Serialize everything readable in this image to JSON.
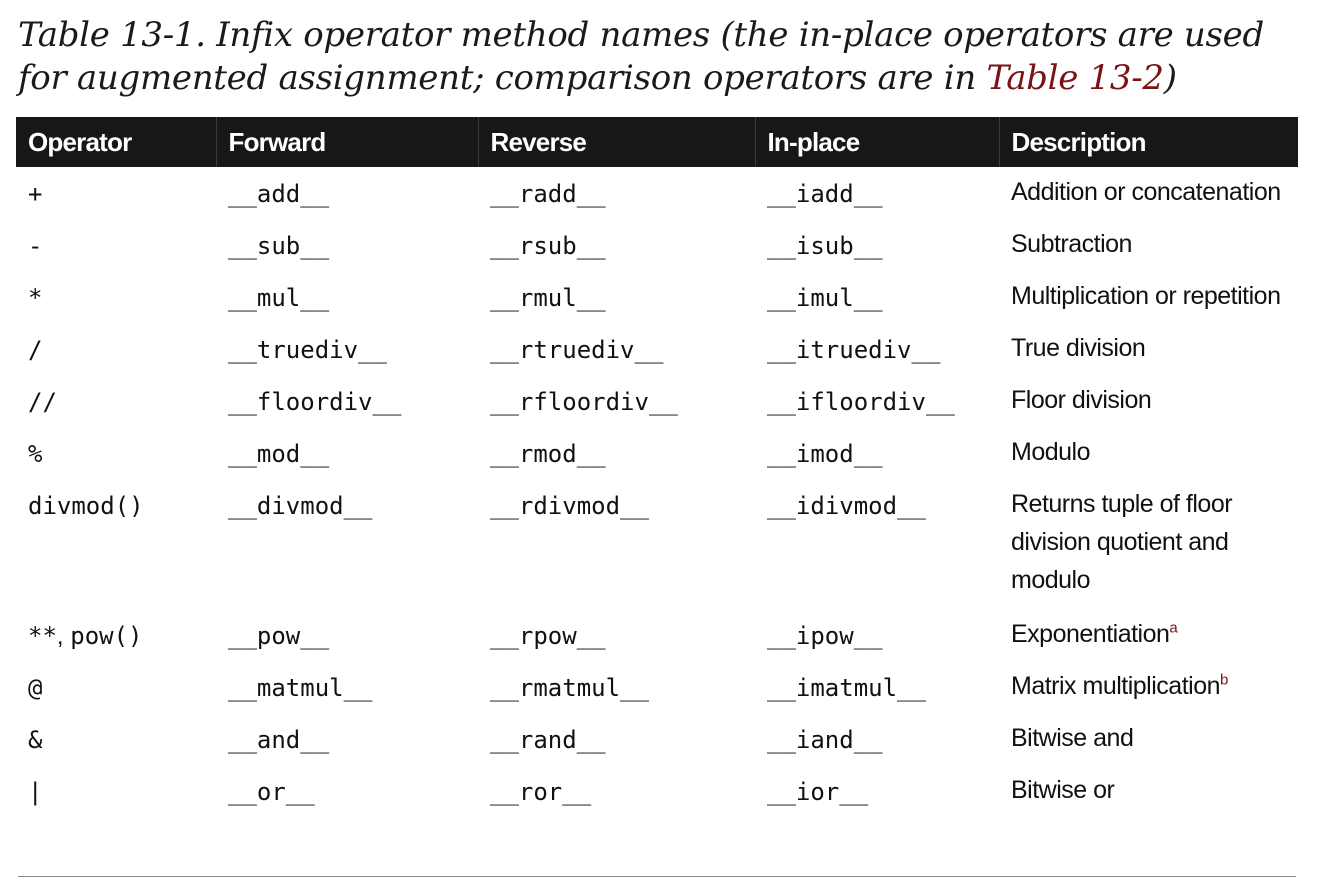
{
  "caption": {
    "text": "Table 13-1. Infix operator method names (the in-place operators are used for augmented assignment; comparison operators are in ",
    "ref": "Table 13-2",
    "close": ")"
  },
  "table": {
    "headers": [
      "Operator",
      "Forward",
      "Reverse",
      "In-place",
      "Description"
    ],
    "rows": [
      {
        "op": "+",
        "fwd": "__add__",
        "rev": "__radd__",
        "inp": "__iadd__",
        "desc": "Addition or concatenation"
      },
      {
        "op": "-",
        "fwd": "__sub__",
        "rev": "__rsub__",
        "inp": "__isub__",
        "desc": "Subtraction"
      },
      {
        "op": "*",
        "fwd": "__mul__",
        "rev": "__rmul__",
        "inp": "__imul__",
        "desc": "Multiplication or repetition"
      },
      {
        "op": "/",
        "fwd": "__truediv__",
        "rev": "__rtruediv__",
        "inp": "__itruediv__",
        "desc": "True division"
      },
      {
        "op": "//",
        "fwd": "__floordiv__",
        "rev": "__rfloordiv__",
        "inp": "__ifloordiv__",
        "desc": "Floor division"
      },
      {
        "op": "%",
        "fwd": "__mod__",
        "rev": "__rmod__",
        "inp": "__imod__",
        "desc": "Modulo"
      },
      {
        "op": "divmod()",
        "fwd": "__divmod__",
        "rev": "__rdivmod__",
        "inp": "__idivmod__",
        "desc": "Returns tuple of floor division quotient and modulo"
      },
      {
        "op_a": "**",
        "op_sep": ", ",
        "op_b": "pow()",
        "fwd": "__pow__",
        "rev": "__rpow__",
        "inp": "__ipow__",
        "desc": "Exponentiation",
        "note": "a"
      },
      {
        "op": "@",
        "fwd": "__matmul__",
        "rev": "__rmatmul__",
        "inp": "__imatmul__",
        "desc": "Matrix multiplication",
        "note": "b"
      },
      {
        "op": "&",
        "fwd": "__and__",
        "rev": "__rand__",
        "inp": "__iand__",
        "desc": "Bitwise and"
      },
      {
        "op": "|",
        "fwd": "__or__",
        "rev": "__ror__",
        "inp": "__ior__",
        "desc": "Bitwise or"
      }
    ]
  }
}
